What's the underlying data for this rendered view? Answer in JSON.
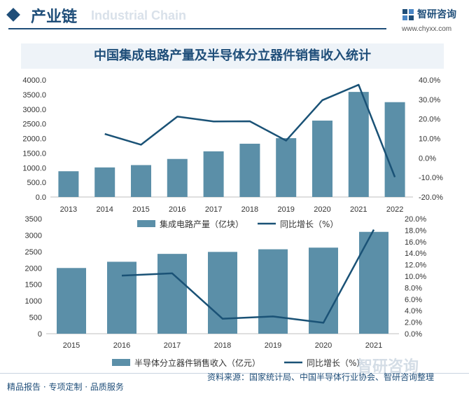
{
  "header": {
    "title": "产业链",
    "bg_text": "Industrial Chain"
  },
  "logo": {
    "name": "智研咨询",
    "url": "www.chyxx.com"
  },
  "chart_title": "中国集成电路产量及半导体分立器件销售收入统计",
  "colors": {
    "bar": "#5b8fa8",
    "line": "#1a5276",
    "accent": "#1f4e79"
  },
  "chart_data": [
    {
      "type": "bar",
      "categories": [
        "2013",
        "2014",
        "2015",
        "2016",
        "2017",
        "2018",
        "2019",
        "2020",
        "2021",
        "2022"
      ],
      "series": [
        {
          "name": "集成电路产量（亿块）",
          "type": "bar",
          "axis": "left",
          "values": [
            880,
            1010,
            1090,
            1300,
            1560,
            1820,
            2010,
            2610,
            3590,
            3240
          ]
        },
        {
          "name": "同比增长（%）",
          "type": "line",
          "axis": "right",
          "values": [
            null,
            12.3,
            6.8,
            21.2,
            18.7,
            18.8,
            8.9,
            29.6,
            37.5,
            -9.8
          ]
        }
      ],
      "ylim_left": [
        0,
        4000
      ],
      "yticks_left": [
        "0.0",
        "500.0",
        "1000.0",
        "1500.0",
        "2000.0",
        "2500.0",
        "3000.0",
        "3500.0",
        "4000.0"
      ],
      "ylim_right": [
        -20,
        40
      ],
      "yticks_right": [
        "-20.0%",
        "-10.0%",
        "0.0%",
        "10.0%",
        "20.0%",
        "30.0%",
        "40.0%"
      ],
      "legend": "bottom"
    },
    {
      "type": "bar",
      "categories": [
        "2015",
        "2016",
        "2017",
        "2018",
        "2019",
        "2020",
        "2021"
      ],
      "series": [
        {
          "name": "半导体分立器件销售收入（亿元）",
          "type": "bar",
          "axis": "left",
          "values": [
            2000,
            2190,
            2430,
            2490,
            2570,
            2620,
            3100
          ]
        },
        {
          "name": "同比增长（%）",
          "type": "line",
          "axis": "right",
          "values": [
            null,
            10.1,
            10.5,
            2.6,
            3.0,
            1.9,
            18.1
          ]
        }
      ],
      "ylim_left": [
        0,
        3500
      ],
      "yticks_left": [
        "0",
        "500",
        "1000",
        "1500",
        "2000",
        "2500",
        "3000",
        "3500"
      ],
      "ylim_right": [
        0,
        20
      ],
      "yticks_right": [
        "0.0%",
        "2.0%",
        "4.0%",
        "6.0%",
        "8.0%",
        "10.0%",
        "12.0%",
        "14.0%",
        "16.0%",
        "18.0%",
        "20.0%"
      ],
      "legend": "bottom"
    }
  ],
  "footer": {
    "left": "精品报告 · 专项定制 · 品质服务",
    "right": "资料来源：国家统计局、中国半导体行业协会、智研咨询整理"
  }
}
